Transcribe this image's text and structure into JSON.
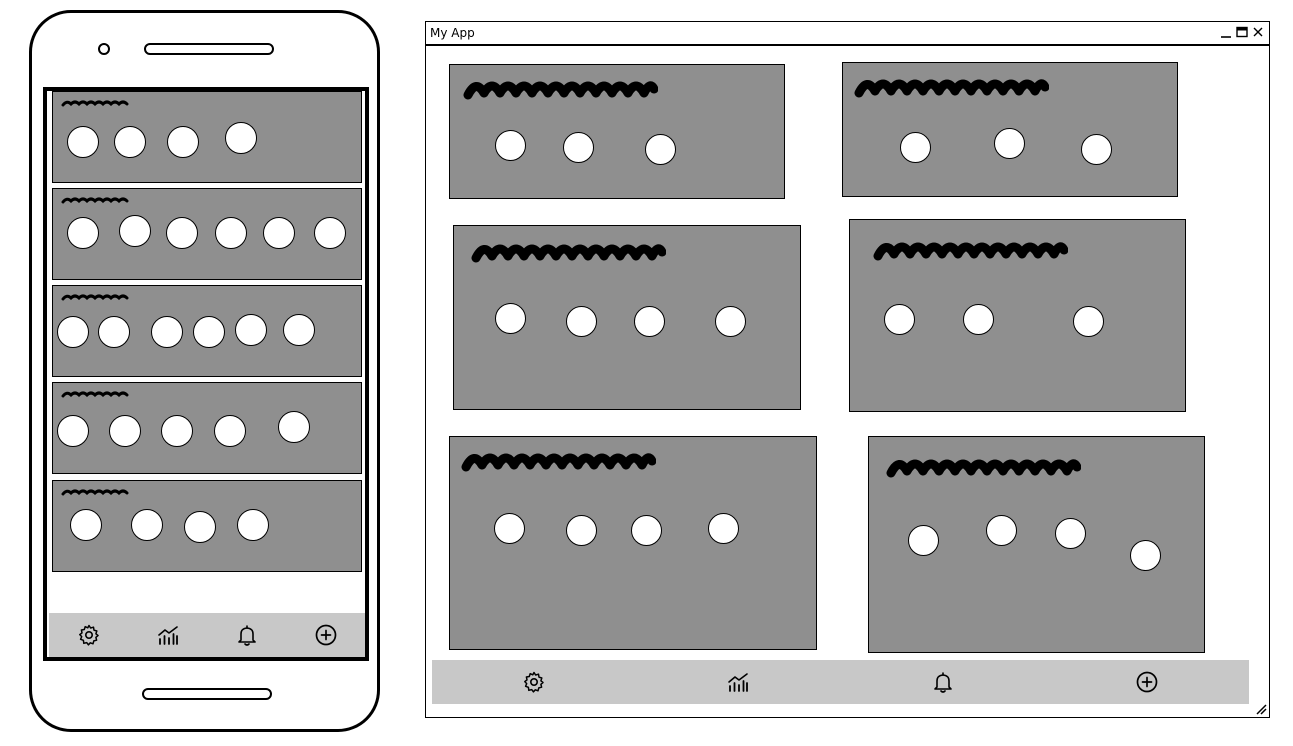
{
  "window": {
    "title": "My App",
    "controls": [
      "minimize-icon",
      "maximize-icon",
      "close-icon"
    ]
  },
  "tabbar": {
    "items": [
      {
        "id": "settings",
        "icon": "gear-icon"
      },
      {
        "id": "analytics",
        "icon": "chart-icon"
      },
      {
        "id": "notifications",
        "icon": "bell-icon"
      },
      {
        "id": "add",
        "icon": "plus-circle-icon"
      }
    ]
  },
  "mobile": {
    "cards": [
      {
        "circles": 4
      },
      {
        "circles": 6
      },
      {
        "circles": 6
      },
      {
        "circles": 5
      },
      {
        "circles": 4
      }
    ]
  },
  "desktop": {
    "cards": [
      {
        "circles": 3
      },
      {
        "circles": 3
      },
      {
        "circles": 4
      },
      {
        "circles": 3
      },
      {
        "circles": 4
      },
      {
        "circles": 4
      }
    ]
  },
  "colors": {
    "card": "#8f8f8f",
    "tabbar": "#c8c8c8",
    "circle": "#ffffff",
    "outline": "#000000"
  }
}
